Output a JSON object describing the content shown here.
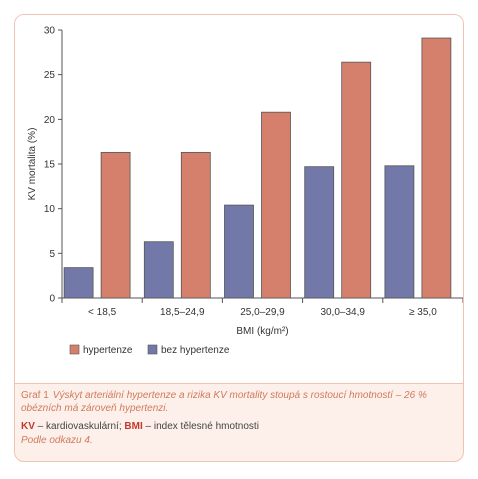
{
  "chart_data": {
    "type": "bar",
    "categories": [
      "< 18,5",
      "18,5–24,9",
      "25,0–29,9",
      "30,0–34,9",
      "≥ 35,0"
    ],
    "series": [
      {
        "name": "bez hypertenze",
        "values": [
          3.4,
          6.3,
          10.4,
          14.7,
          14.8
        ]
      },
      {
        "name": "hypertenze",
        "values": [
          16.3,
          16.3,
          20.8,
          26.4,
          29.1
        ]
      }
    ],
    "xlabel": "BMI (kg/m²)",
    "ylabel": "KV mortalita (%)",
    "ylim": [
      0,
      30
    ],
    "yticks": [
      0,
      5,
      10,
      15,
      20,
      25,
      30
    ],
    "grid": false,
    "legend_position": "bottom-left"
  },
  "colors": {
    "hypertenze": "#d4806c",
    "bez_hypertenze": "#7278a8"
  },
  "legend": {
    "hypertenze": "hypertenze",
    "bez_hypertenze": "bez hypertenze"
  },
  "caption": {
    "prefix": "Graf 1",
    "text": "Výskyt arteriální hypertenze a rizika KV mortality stoupá s rostoucí hmotností – 26 % obézních má zároveň hypertenzi.",
    "abbrev_kv": "KV",
    "abbrev_kv_text": " – kardiovaskulární; ",
    "abbrev_bmi": "BMI",
    "abbrev_bmi_text": " – index tělesné hmotnosti",
    "source": "Podle odkazu 4."
  }
}
